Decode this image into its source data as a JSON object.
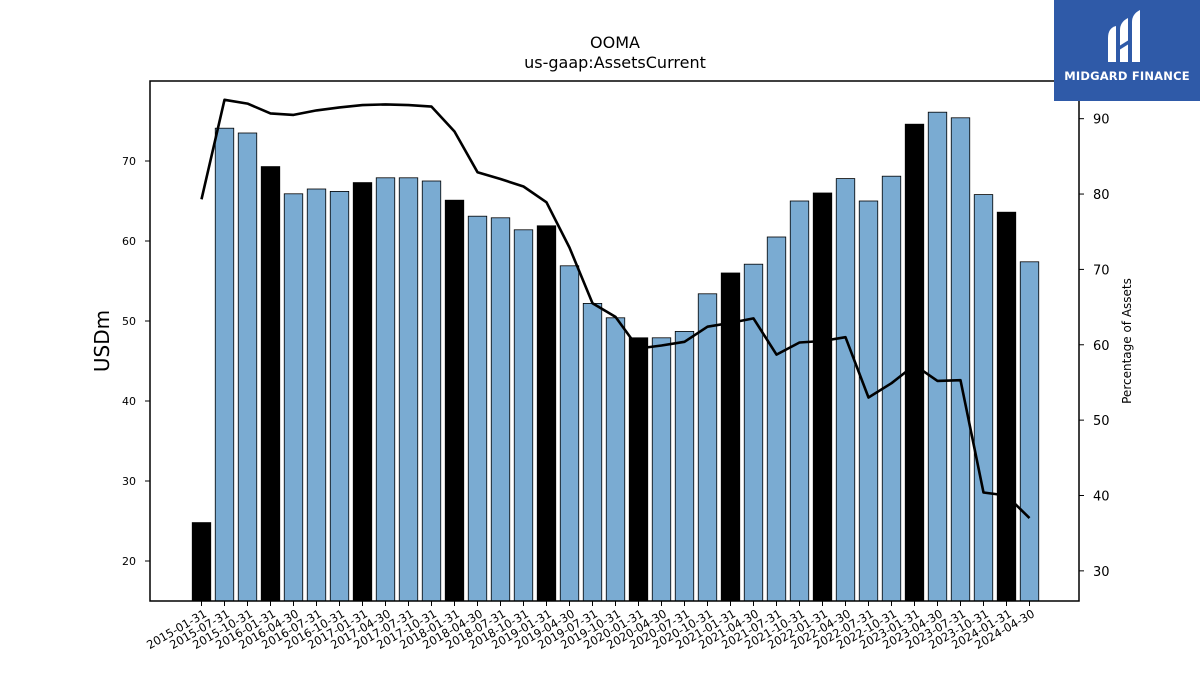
{
  "chart_data": {
    "type": "bar",
    "title": "OOMA",
    "subtitle": "us-gaap:AssetsCurrent",
    "ylabel": "USDm",
    "y2label": "Percentage of Assets",
    "ylim": [
      15,
      80
    ],
    "y2lim": [
      26,
      95
    ],
    "yticks": [
      20,
      30,
      40,
      50,
      60,
      70
    ],
    "y2ticks": [
      30,
      40,
      50,
      60,
      70,
      80,
      90
    ],
    "categories": [
      "2015-01-31",
      "2015-07-31",
      "2015-10-31",
      "2016-01-31",
      "2016-04-30",
      "2016-07-31",
      "2016-10-31",
      "2017-01-31",
      "2017-04-30",
      "2017-07-31",
      "2017-10-31",
      "2018-01-31",
      "2018-04-30",
      "2018-07-31",
      "2018-10-31",
      "2019-01-31",
      "2019-04-30",
      "2019-07-31",
      "2019-10-31",
      "2020-01-31",
      "2020-04-30",
      "2020-07-31",
      "2020-10-31",
      "2021-01-31",
      "2021-04-30",
      "2021-07-31",
      "2021-10-31",
      "2022-01-31",
      "2022-04-30",
      "2022-07-31",
      "2022-10-31",
      "2023-01-31",
      "2023-04-30",
      "2023-07-31",
      "2023-10-31",
      "2024-01-31",
      "2024-04-30"
    ],
    "values": [
      24.8,
      74.1,
      73.5,
      69.3,
      65.9,
      66.5,
      66.2,
      67.3,
      67.9,
      67.9,
      67.5,
      65.1,
      63.1,
      62.9,
      61.4,
      61.9,
      56.9,
      52.2,
      50.4,
      47.9,
      47.9,
      48.7,
      53.4,
      56.0,
      57.1,
      60.5,
      65.0,
      66.0,
      67.8,
      65.0,
      68.1,
      74.6,
      76.1,
      75.4,
      65.8,
      63.6,
      57.4
    ],
    "highlight": [
      true,
      false,
      false,
      true,
      false,
      false,
      false,
      true,
      false,
      false,
      false,
      true,
      false,
      false,
      false,
      true,
      false,
      false,
      false,
      true,
      false,
      false,
      false,
      true,
      false,
      false,
      false,
      true,
      false,
      false,
      false,
      true,
      false,
      false,
      false,
      true,
      false
    ],
    "line_series": {
      "name": "Percentage of Assets",
      "values": [
        79.3,
        92.5,
        92.0,
        90.7,
        90.5,
        91.1,
        91.5,
        91.8,
        91.9,
        91.8,
        91.6,
        88.3,
        82.9,
        82.0,
        81.0,
        78.9,
        72.9,
        65.5,
        63.7,
        59.5,
        59.9,
        60.4,
        62.4,
        62.9,
        63.5,
        58.7,
        60.3,
        60.5,
        61.0,
        53.0,
        54.9,
        57.3,
        55.2,
        55.3,
        40.4,
        40.0,
        37.0
      ]
    },
    "colors": {
      "bar": "#7aabd2",
      "highlight_bar": "#000000",
      "line": "#000000"
    },
    "grid": false
  },
  "logo": {
    "text": "MIDGARD FINANCE",
    "mark": "midgard-logo-mark"
  }
}
